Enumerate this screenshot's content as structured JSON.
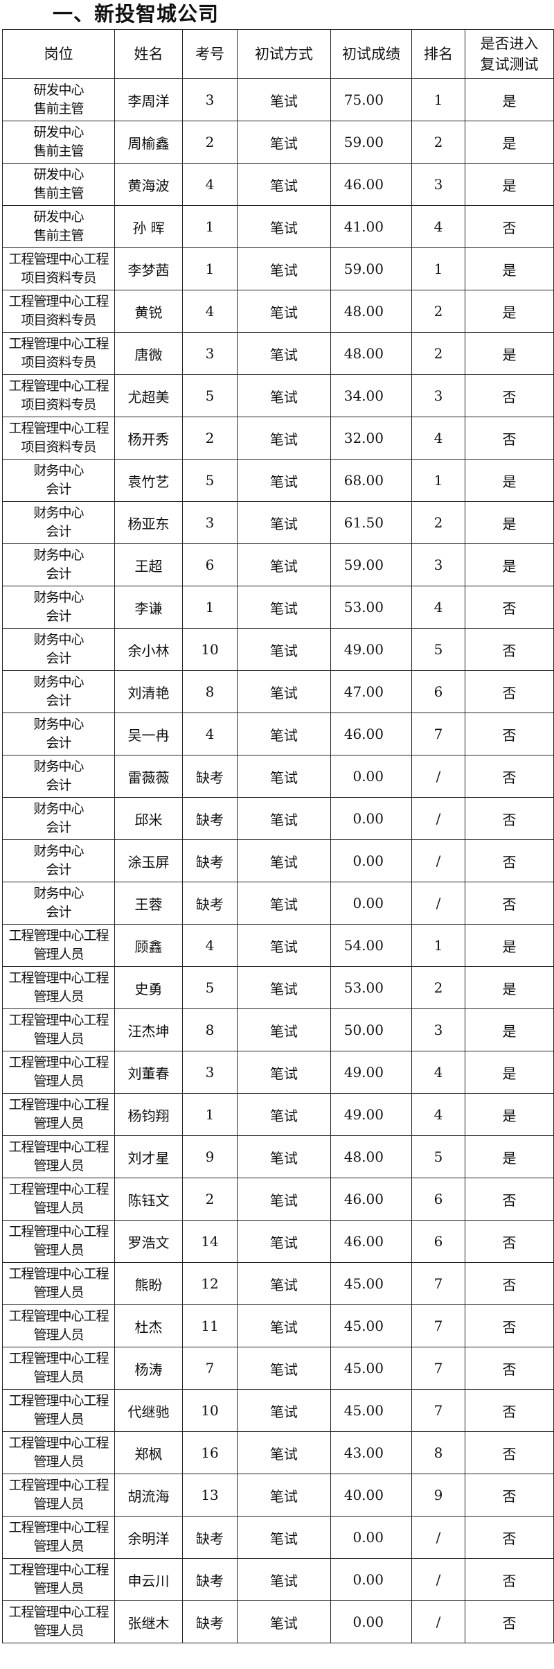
{
  "title": "一、新投智城公司",
  "headers": [
    "岗位",
    "姓名",
    "考号",
    "初试方式",
    "初试成绩",
    "排名",
    "是否进入复试测试"
  ],
  "rows": [
    [
      "研发中心售前主管",
      "李周洋",
      "3",
      "笔试",
      "75.00",
      "1",
      "是"
    ],
    [
      "研发中心售前主管",
      "周榆鑫",
      "2",
      "笔试",
      "59.00",
      "2",
      "是"
    ],
    [
      "研发中心售前主管",
      "黄海波",
      "4",
      "笔试",
      "46.00",
      "3",
      "是"
    ],
    [
      "研发中心售前主管",
      "孙 晖",
      "1",
      "笔试",
      "41.00",
      "4",
      "否"
    ],
    [
      "工程管理中心工程项目资料专员",
      "李梦茜",
      "1",
      "笔试",
      "59.00",
      "1",
      "是"
    ],
    [
      "工程管理中心工程项目资料专员",
      "黄锐",
      "4",
      "笔试",
      "48.00",
      "2",
      "是"
    ],
    [
      "工程管理中心工程项目资料专员",
      "唐微",
      "3",
      "笔试",
      "48.00",
      "2",
      "是"
    ],
    [
      "工程管理中心工程项目资料专员",
      "尤超美",
      "5",
      "笔试",
      "34.00",
      "3",
      "否"
    ],
    [
      "工程管理中心工程项目资料专员",
      "杨开秀",
      "2",
      "笔试",
      "32.00",
      "4",
      "否"
    ],
    [
      "财务中心会计",
      "袁竹艺",
      "5",
      "笔试",
      "68.00",
      "1",
      "是"
    ],
    [
      "财务中心会计",
      "杨亚东",
      "3",
      "笔试",
      "61.50",
      "2",
      "是"
    ],
    [
      "财务中心会计",
      "王超",
      "6",
      "笔试",
      "59.00",
      "3",
      "是"
    ],
    [
      "财务中心会计",
      "李谦",
      "1",
      "笔试",
      "53.00",
      "4",
      "否"
    ],
    [
      "财务中心会计",
      "余小林",
      "10",
      "笔试",
      "49.00",
      "5",
      "否"
    ],
    [
      "财务中心会计",
      "刘清艳",
      "8",
      "笔试",
      "47.00",
      "6",
      "否"
    ],
    [
      "财务中心会计",
      "吴一冉",
      "4",
      "笔试",
      "46.00",
      "7",
      "否"
    ],
    [
      "财务中心会计",
      "雷薇薇",
      "缺考",
      "笔试",
      "0.00",
      "/",
      "否"
    ],
    [
      "财务中心会计",
      "邱米",
      "缺考",
      "笔试",
      "0.00",
      "/",
      "否"
    ],
    [
      "财务中心会计",
      "涂玉屏",
      "缺考",
      "笔试",
      "0.00",
      "/",
      "否"
    ],
    [
      "财务中心会计",
      "王蓉",
      "缺考",
      "笔试",
      "0.00",
      "/",
      "否"
    ],
    [
      "工程管理中心工程管理人员",
      "顾鑫",
      "4",
      "笔试",
      "54.00",
      "1",
      "是"
    ],
    [
      "工程管理中心工程管理人员",
      "史勇",
      "5",
      "笔试",
      "53.00",
      "2",
      "是"
    ],
    [
      "工程管理中心工程管理人员",
      "汪杰坤",
      "8",
      "笔试",
      "50.00",
      "3",
      "是"
    ],
    [
      "工程管理中心工程管理人员",
      "刘董春",
      "3",
      "笔试",
      "49.00",
      "4",
      "是"
    ],
    [
      "工程管理中心工程管理人员",
      "杨钧翔",
      "1",
      "笔试",
      "49.00",
      "4",
      "是"
    ],
    [
      "工程管理中心工程管理人员",
      "刘才星",
      "9",
      "笔试",
      "48.00",
      "5",
      "是"
    ],
    [
      "工程管理中心工程管理人员",
      "陈钰文",
      "2",
      "笔试",
      "46.00",
      "6",
      "否"
    ],
    [
      "工程管理中心工程管理人员",
      "罗浩文",
      "14",
      "笔试",
      "46.00",
      "6",
      "否"
    ],
    [
      "工程管理中心工程管理人员",
      "熊盼",
      "12",
      "笔试",
      "45.00",
      "7",
      "否"
    ],
    [
      "工程管理中心工程管理人员",
      "杜杰",
      "11",
      "笔试",
      "45.00",
      "7",
      "否"
    ],
    [
      "工程管理中心工程管理人员",
      "杨涛",
      "7",
      "笔试",
      "45.00",
      "7",
      "否"
    ],
    [
      "工程管理中心工程管理人员",
      "代继驰",
      "10",
      "笔试",
      "45.00",
      "7",
      "否"
    ],
    [
      "工程管理中心工程管理人员",
      "郑枫",
      "16",
      "笔试",
      "43.00",
      "8",
      "否"
    ],
    [
      "工程管理中心工程管理人员",
      "胡流海",
      "13",
      "笔试",
      "40.00",
      "9",
      "否"
    ],
    [
      "工程管理中心工程管理人员",
      "余明洋",
      "缺考",
      "笔试",
      "0.00",
      "/",
      "否"
    ],
    [
      "工程管理中心工程管理人员",
      "申云川",
      "缺考",
      "笔试",
      "0.00",
      "/",
      "否"
    ],
    [
      "工程管理中心工程管理人员",
      "张继木",
      "缺考",
      "笔试",
      "0.00",
      "/",
      "否"
    ]
  ]
}
